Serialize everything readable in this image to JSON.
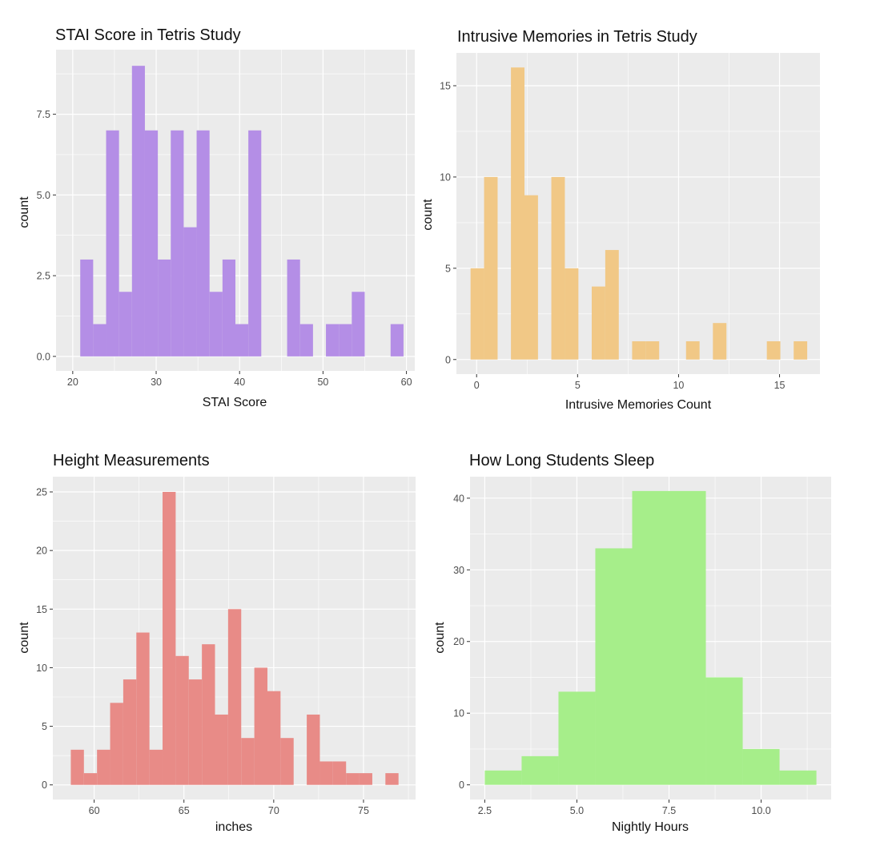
{
  "chart_data": [
    {
      "type": "bar",
      "title": "STAI Score in Tetris Study",
      "xlabel": "STAI Score",
      "ylabel": "count",
      "fill_color": "#b48ee6",
      "xlim": [
        18.0,
        61.0
      ],
      "ylim": [
        -0.45,
        9.5
      ],
      "x_ticks": [
        20,
        30,
        40,
        50,
        60
      ],
      "x_tick_labels": [
        "20",
        "30",
        "40",
        "50",
        "60"
      ],
      "y_ticks": [
        0,
        2.5,
        5,
        7.5
      ],
      "y_tick_labels": [
        "0.0",
        "2.5",
        "5.0",
        "7.5"
      ],
      "bin_width": 1.55,
      "bins": [
        {
          "x0": 20.9,
          "count": 3
        },
        {
          "x0": 22.45,
          "count": 1
        },
        {
          "x0": 24.0,
          "count": 7
        },
        {
          "x0": 25.55,
          "count": 2
        },
        {
          "x0": 27.1,
          "count": 9
        },
        {
          "x0": 28.65,
          "count": 7
        },
        {
          "x0": 30.2,
          "count": 3
        },
        {
          "x0": 31.75,
          "count": 7
        },
        {
          "x0": 33.3,
          "count": 4
        },
        {
          "x0": 34.85,
          "count": 7
        },
        {
          "x0": 36.4,
          "count": 2
        },
        {
          "x0": 37.95,
          "count": 3
        },
        {
          "x0": 39.5,
          "count": 1
        },
        {
          "x0": 41.05,
          "count": 7
        },
        {
          "x0": 45.7,
          "count": 3
        },
        {
          "x0": 47.25,
          "count": 1
        },
        {
          "x0": 50.35,
          "count": 1
        },
        {
          "x0": 51.9,
          "count": 1
        },
        {
          "x0": 53.45,
          "count": 2
        },
        {
          "x0": 58.1,
          "count": 1
        }
      ]
    },
    {
      "type": "bar",
      "title": "Intrusive Memories in Tetris Study",
      "xlabel": "Intrusive Memories Count",
      "ylabel": "count",
      "fill_color": "#f1c886",
      "xlim": [
        -1.0,
        17.0
      ],
      "ylim": [
        -0.8,
        16.8
      ],
      "x_ticks": [
        0,
        5,
        10,
        15
      ],
      "x_tick_labels": [
        "0",
        "5",
        "10",
        "15"
      ],
      "y_ticks": [
        0,
        5,
        10,
        15
      ],
      "y_tick_labels": [
        "0",
        "5",
        "10",
        "15"
      ],
      "bin_width": 0.67,
      "bins": [
        {
          "x0": -0.3,
          "count": 5
        },
        {
          "x0": 0.37,
          "count": 10
        },
        {
          "x0": 1.7,
          "count": 16
        },
        {
          "x0": 2.37,
          "count": 9
        },
        {
          "x0": 3.7,
          "count": 10
        },
        {
          "x0": 4.37,
          "count": 5
        },
        {
          "x0": 5.7,
          "count": 4
        },
        {
          "x0": 6.37,
          "count": 6
        },
        {
          "x0": 7.7,
          "count": 1
        },
        {
          "x0": 8.37,
          "count": 1
        },
        {
          "x0": 10.37,
          "count": 1
        },
        {
          "x0": 11.7,
          "count": 2
        },
        {
          "x0": 14.37,
          "count": 1
        },
        {
          "x0": 15.7,
          "count": 1
        }
      ]
    },
    {
      "type": "bar",
      "title": "Height Measurements",
      "xlabel": "inches",
      "ylabel": "count",
      "fill_color": "#e88b87",
      "xlim": [
        57.7,
        77.9
      ],
      "ylim": [
        -1.25,
        26.3
      ],
      "x_ticks": [
        60,
        65,
        70,
        75
      ],
      "x_tick_labels": [
        "60",
        "65",
        "70",
        "75"
      ],
      "y_ticks": [
        0,
        5,
        10,
        15,
        20,
        25
      ],
      "y_tick_labels": [
        "0",
        "5",
        "10",
        "15",
        "20",
        "25"
      ],
      "bin_width": 0.73,
      "bins": [
        {
          "x0": 58.7,
          "count": 3
        },
        {
          "x0": 59.43,
          "count": 1
        },
        {
          "x0": 60.16,
          "count": 3
        },
        {
          "x0": 60.89,
          "count": 7
        },
        {
          "x0": 61.62,
          "count": 9
        },
        {
          "x0": 62.35,
          "count": 13
        },
        {
          "x0": 63.08,
          "count": 3
        },
        {
          "x0": 63.81,
          "count": 25
        },
        {
          "x0": 64.54,
          "count": 11
        },
        {
          "x0": 65.27,
          "count": 9
        },
        {
          "x0": 66.0,
          "count": 12
        },
        {
          "x0": 66.73,
          "count": 6
        },
        {
          "x0": 67.46,
          "count": 15
        },
        {
          "x0": 68.19,
          "count": 4
        },
        {
          "x0": 68.92,
          "count": 10
        },
        {
          "x0": 69.65,
          "count": 8
        },
        {
          "x0": 70.38,
          "count": 4
        },
        {
          "x0": 71.84,
          "count": 6
        },
        {
          "x0": 72.57,
          "count": 2
        },
        {
          "x0": 73.3,
          "count": 2
        },
        {
          "x0": 74.03,
          "count": 1
        },
        {
          "x0": 74.76,
          "count": 1
        },
        {
          "x0": 76.22,
          "count": 1
        }
      ]
    },
    {
      "type": "bar",
      "title": "How Long Students Sleep",
      "xlabel": "Nightly Hours",
      "ylabel": "count",
      "fill_color": "#a6ee8a",
      "xlim": [
        2.1,
        11.9
      ],
      "ylim": [
        -2.05,
        43.0
      ],
      "x_ticks": [
        2.5,
        5.0,
        7.5,
        10.0
      ],
      "x_tick_labels": [
        "2.5",
        "5.0",
        "7.5",
        "10.0"
      ],
      "y_ticks": [
        0,
        10,
        20,
        30,
        40
      ],
      "y_tick_labels": [
        "0",
        "10",
        "20",
        "30",
        "40"
      ],
      "bin_width": 1.0,
      "bins": [
        {
          "x0": 2.5,
          "count": 2
        },
        {
          "x0": 3.5,
          "count": 4
        },
        {
          "x0": 4.5,
          "count": 13
        },
        {
          "x0": 5.5,
          "count": 33
        },
        {
          "x0": 6.5,
          "count": 41
        },
        {
          "x0": 7.5,
          "count": 41
        },
        {
          "x0": 8.5,
          "count": 15
        },
        {
          "x0": 9.5,
          "count": 5
        },
        {
          "x0": 10.5,
          "count": 2
        }
      ]
    }
  ]
}
